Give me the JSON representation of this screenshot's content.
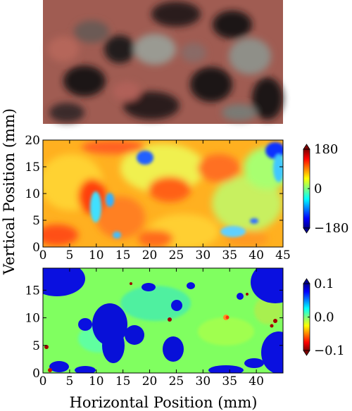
{
  "chart_data": [
    {
      "type": "image",
      "panel": "photograph",
      "description_visible": "rock sample photograph",
      "xlabel": "",
      "ylabel": ""
    },
    {
      "type": "heatmap",
      "panel": "top-map",
      "xlabel": "",
      "ylabel": "Vertical Position (mm)",
      "xlim": [
        0,
        45
      ],
      "ylim": [
        0,
        20
      ],
      "xticks": [
        "0",
        "5",
        "10",
        "15",
        "20",
        "25",
        "30",
        "35",
        "40",
        "45"
      ],
      "yticks": [
        "0",
        "5",
        "10",
        "15",
        "20"
      ],
      "colorbar": {
        "min": -180,
        "max": 180,
        "ticks": [
          "180",
          "0",
          "−180"
        ],
        "colormap": "jet"
      }
    },
    {
      "type": "heatmap",
      "panel": "bottom-map",
      "xlabel": "Horizontal Position (mm)",
      "ylabel": "",
      "xlim": [
        0,
        45
      ],
      "ylim": [
        0,
        19
      ],
      "xticks": [
        "0",
        "5",
        "10",
        "15",
        "20",
        "25",
        "30",
        "35",
        "40"
      ],
      "yticks": [
        "0",
        "5",
        "10",
        "15"
      ],
      "colorbar": {
        "min": -0.1,
        "max": 0.1,
        "ticks": [
          "0.1",
          "0.0",
          "−0.1"
        ],
        "colormap": "jet_r"
      }
    }
  ],
  "labels": {
    "ylabel": "Vertical Position (mm)",
    "xlabel": "Horizontal Position (mm)"
  }
}
